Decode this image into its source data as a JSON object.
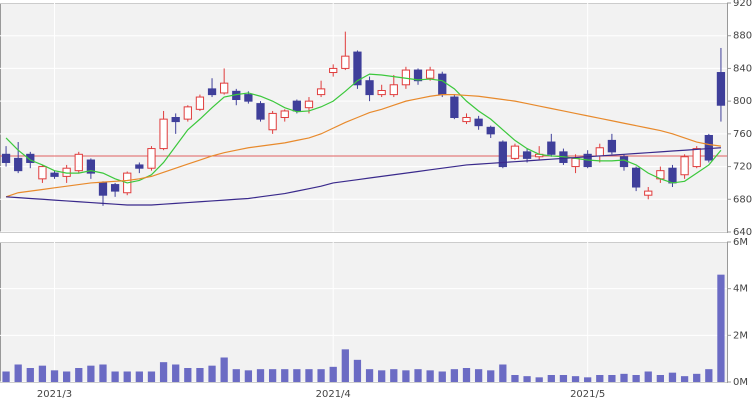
{
  "chart_data": [
    {
      "type": "candlestick",
      "categories": [
        null,
        null,
        null,
        null,
        "2021/3",
        null,
        null,
        null,
        null,
        null,
        null,
        null,
        null,
        null,
        null,
        null,
        null,
        null,
        null,
        null,
        null,
        null,
        null,
        null,
        null,
        null,
        null,
        "2021/4",
        null,
        null,
        null,
        null,
        null,
        null,
        null,
        null,
        null,
        null,
        null,
        null,
        null,
        null,
        null,
        null,
        null,
        null,
        null,
        null,
        "2021/5",
        null,
        null,
        null,
        null,
        null,
        null,
        null,
        null,
        null,
        null,
        null
      ],
      "open": [
        735,
        730,
        735,
        705,
        712,
        708,
        715,
        728,
        700,
        698,
        688,
        722,
        718,
        742,
        780,
        778,
        790,
        815,
        810,
        812,
        808,
        797,
        765,
        780,
        800,
        792,
        808,
        835,
        840,
        860,
        825,
        808,
        808,
        820,
        838,
        828,
        833,
        805,
        775,
        778,
        768,
        750,
        730,
        738,
        732,
        750,
        738,
        720,
        735,
        733,
        752,
        732,
        718,
        685,
        705,
        718,
        710,
        720,
        758,
        835
      ],
      "high": [
        745,
        750,
        738,
        722,
        715,
        722,
        738,
        730,
        702,
        700,
        714,
        725,
        745,
        788,
        785,
        795,
        808,
        828,
        840,
        815,
        812,
        800,
        788,
        790,
        802,
        805,
        825,
        845,
        885,
        862,
        830,
        820,
        832,
        842,
        840,
        842,
        836,
        808,
        785,
        782,
        770,
        752,
        748,
        742,
        745,
        760,
        742,
        735,
        740,
        748,
        760,
        735,
        720,
        695,
        720,
        722,
        735,
        745,
        760,
        865
      ],
      "low": [
        720,
        712,
        718,
        700,
        705,
        700,
        712,
        705,
        672,
        683,
        685,
        712,
        715,
        740,
        760,
        775,
        788,
        805,
        808,
        795,
        797,
        775,
        760,
        775,
        785,
        785,
        805,
        830,
        838,
        815,
        800,
        805,
        805,
        815,
        820,
        825,
        805,
        778,
        772,
        765,
        755,
        718,
        728,
        725,
        728,
        732,
        722,
        712,
        718,
        725,
        735,
        715,
        690,
        680,
        700,
        695,
        705,
        718,
        725,
        775
      ],
      "close": [
        725,
        715,
        725,
        720,
        708,
        718,
        735,
        712,
        685,
        690,
        712,
        718,
        742,
        778,
        775,
        793,
        805,
        808,
        822,
        802,
        800,
        778,
        785,
        788,
        788,
        800,
        815,
        840,
        855,
        820,
        808,
        813,
        820,
        838,
        825,
        838,
        808,
        780,
        780,
        770,
        760,
        720,
        745,
        730,
        735,
        735,
        725,
        730,
        720,
        743,
        738,
        720,
        695,
        690,
        715,
        700,
        732,
        742,
        728,
        795
      ],
      "up_color": "#e03c3c",
      "down_color": "#3f3f9a",
      "series": [
        {
          "color": "#3cc83c",
          "values": [
            755,
            740,
            728,
            722,
            715,
            712,
            712,
            715,
            712,
            705,
            700,
            703,
            710,
            725,
            745,
            765,
            778,
            792,
            805,
            808,
            810,
            806,
            800,
            792,
            787,
            788,
            793,
            800,
            812,
            825,
            833,
            832,
            830,
            828,
            826,
            827,
            825,
            815,
            800,
            788,
            778,
            765,
            752,
            742,
            735,
            733,
            732,
            730,
            728,
            727,
            727,
            728,
            722,
            712,
            705,
            700,
            702,
            712,
            722,
            740
          ]
        },
        {
          "color": "#e88a2c",
          "values": [
            683,
            688,
            690,
            692,
            694,
            696,
            698,
            700,
            701,
            702,
            703,
            705,
            708,
            713,
            718,
            723,
            728,
            733,
            737,
            740,
            743,
            745,
            747,
            749,
            752,
            755,
            760,
            767,
            774,
            780,
            786,
            790,
            795,
            800,
            803,
            806,
            808,
            808,
            807,
            806,
            804,
            802,
            800,
            797,
            794,
            791,
            788,
            785,
            782,
            779,
            776,
            773,
            770,
            767,
            764,
            760,
            755,
            750,
            747,
            745
          ]
        },
        {
          "color": "#3a2a8c",
          "values": [
            683,
            682,
            681,
            680,
            679,
            678,
            677,
            676,
            675,
            674,
            673,
            673,
            673,
            674,
            675,
            676,
            677,
            678,
            679,
            680,
            681,
            683,
            685,
            687,
            690,
            693,
            696,
            700,
            702,
            704,
            706,
            708,
            710,
            712,
            714,
            716,
            718,
            720,
            722,
            723,
            724,
            725,
            726,
            727,
            728,
            729,
            730,
            731,
            732,
            733,
            734,
            735,
            736,
            737,
            738,
            739,
            740,
            741,
            742,
            743
          ]
        }
      ],
      "hline": {
        "value": 733,
        "color": "#e06060"
      },
      "ylim": [
        640,
        920
      ],
      "yticks": [
        640,
        680,
        720,
        760,
        800,
        840,
        880,
        920
      ],
      "grid": true
    },
    {
      "type": "bar",
      "values": [
        0.45,
        0.75,
        0.6,
        0.7,
        0.5,
        0.45,
        0.6,
        0.7,
        0.75,
        0.45,
        0.45,
        0.45,
        0.45,
        0.85,
        0.75,
        0.6,
        0.6,
        0.7,
        1.05,
        0.55,
        0.5,
        0.55,
        0.55,
        0.55,
        0.55,
        0.55,
        0.55,
        0.65,
        1.4,
        0.95,
        0.55,
        0.5,
        0.55,
        0.5,
        0.55,
        0.5,
        0.45,
        0.55,
        0.6,
        0.55,
        0.5,
        0.75,
        0.3,
        0.25,
        0.2,
        0.3,
        0.3,
        0.25,
        0.2,
        0.3,
        0.3,
        0.35,
        0.3,
        0.45,
        0.3,
        0.4,
        0.25,
        0.35,
        0.55,
        4.6
      ],
      "color": "#6b6bc4",
      "ylim": [
        0,
        6
      ],
      "yticks": [
        {
          "value": 0,
          "label": "0M"
        },
        {
          "value": 2,
          "label": "2M"
        },
        {
          "value": 4,
          "label": "4M"
        },
        {
          "value": 6,
          "label": "6M"
        }
      ],
      "grid": true
    }
  ]
}
